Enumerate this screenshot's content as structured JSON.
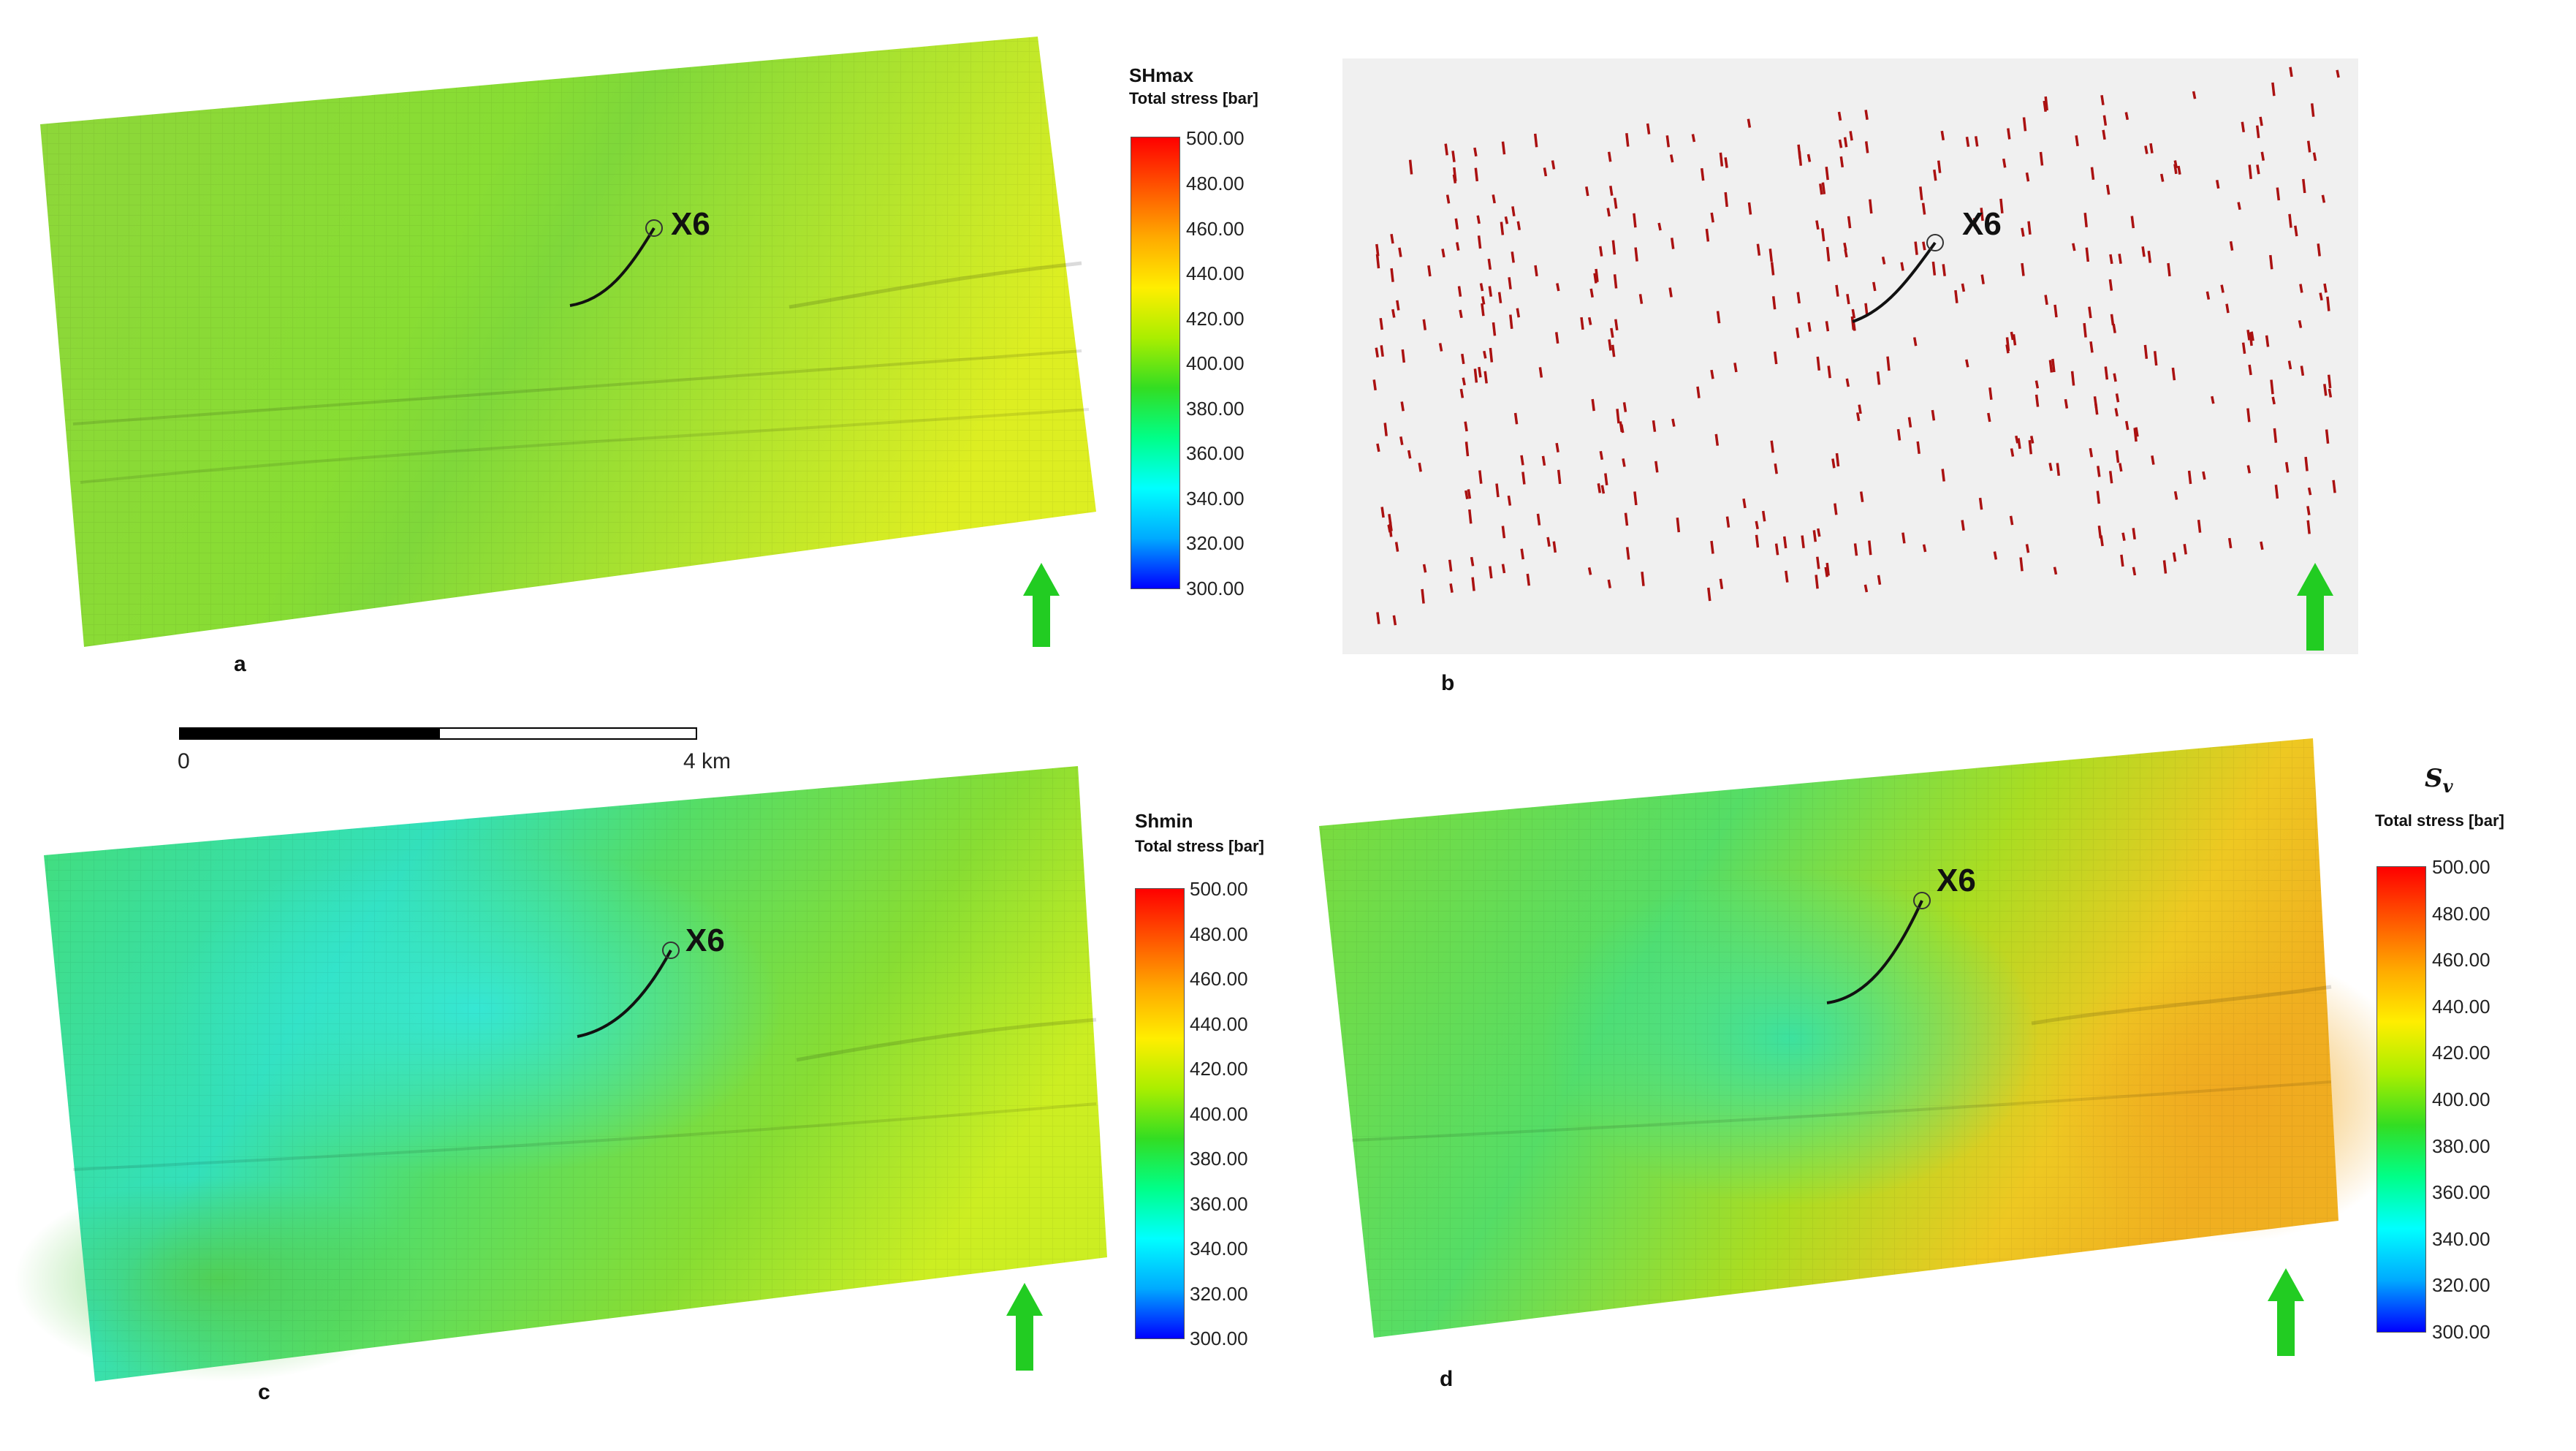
{
  "panels": {
    "a": {
      "letter": "a",
      "well": "X6",
      "legend_title": "SHmax",
      "legend_subtitle": "Total stress [bar]"
    },
    "b": {
      "letter": "b",
      "well": "X6"
    },
    "c": {
      "letter": "c",
      "well": "X6",
      "legend_title": "Shmin",
      "legend_subtitle": "Total stress [bar]"
    },
    "d": {
      "letter": "d",
      "well": "X6",
      "legend_title_main": "S",
      "legend_title_sub": "v",
      "legend_subtitle": "Total stress [bar]"
    }
  },
  "colorbar": {
    "ticks": [
      "500.00",
      "480.00",
      "460.00",
      "440.00",
      "420.00",
      "400.00",
      "380.00",
      "360.00",
      "340.00",
      "320.00",
      "300.00"
    ],
    "min": 300,
    "max": 500,
    "colors": [
      "#0000ff",
      "#00aaff",
      "#00ffff",
      "#00ff88",
      "#33dd22",
      "#aaee00",
      "#ffee00",
      "#ffaa00",
      "#ff5500",
      "#ff0000"
    ]
  },
  "scalebar": {
    "start_label": "0",
    "end_label": "4 km"
  },
  "colors": {
    "north_arrow": "#22cc22",
    "stress_tick": "#aa1111",
    "panel_b_background": "#f0f0f0"
  }
}
